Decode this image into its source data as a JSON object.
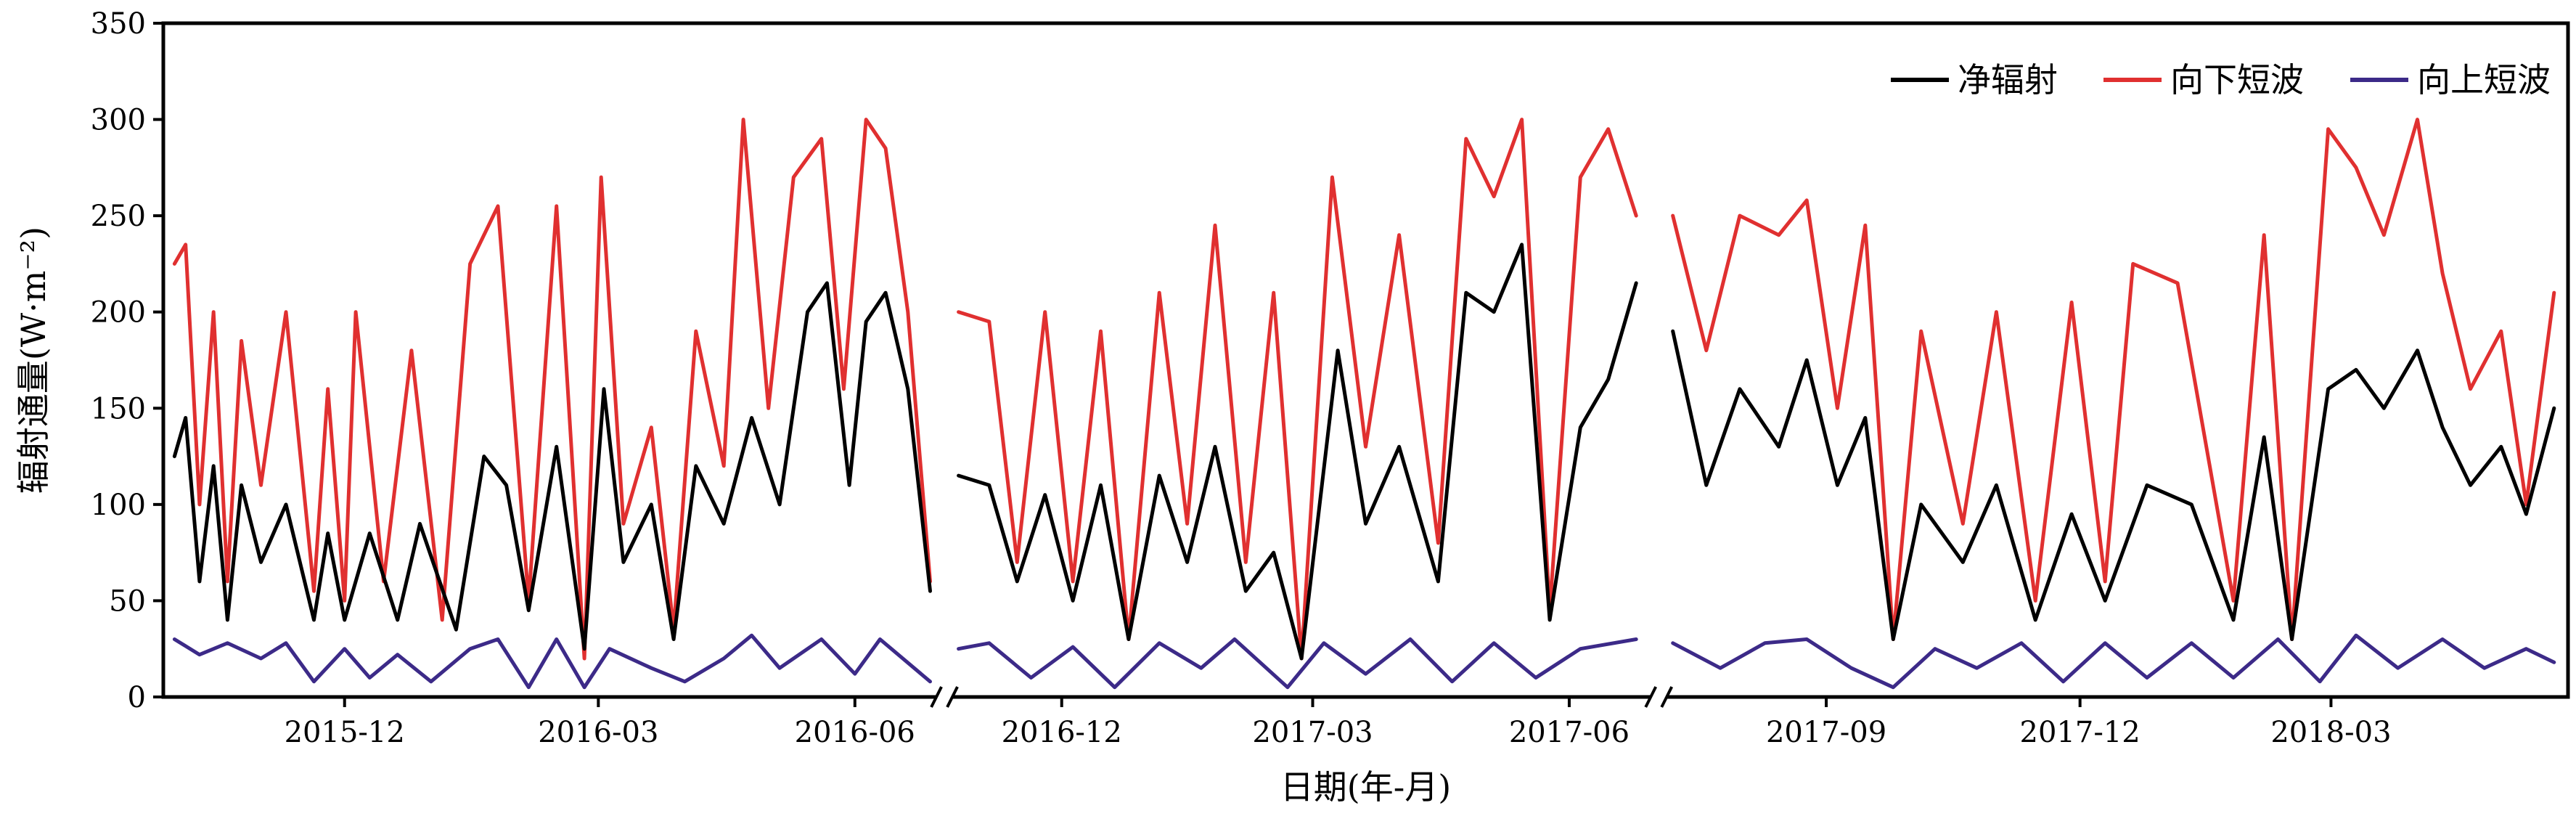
{
  "chart_data": {
    "type": "line",
    "title": "",
    "xlabel": "日期(年-月)",
    "ylabel": "辐射通量(W·m⁻²)",
    "ylim": [
      0,
      350
    ],
    "yticks": [
      0,
      50,
      100,
      150,
      200,
      250,
      300,
      350
    ],
    "grid": false,
    "legend_position": "top-right",
    "axis_breaks": 2,
    "segments": [
      {
        "start": "2015-09-27",
        "end": "2016-07-01",
        "ticks": [
          "2015-12",
          "2016-03",
          "2016-06"
        ]
      },
      {
        "start": "2016-10-22",
        "end": "2017-07-01",
        "ticks": [
          "2016-12",
          "2017-03",
          "2017-06"
        ]
      },
      {
        "start": "2017-07-05",
        "end": "2018-05-25",
        "ticks": [
          "2017-09",
          "2017-12",
          "2018-03"
        ]
      }
    ],
    "series": [
      {
        "name": "净辐射",
        "color": "#000000",
        "points": [
          [
            "2015-10-01",
            125
          ],
          [
            "2015-10-05",
            145
          ],
          [
            "2015-10-10",
            60
          ],
          [
            "2015-10-15",
            120
          ],
          [
            "2015-10-20",
            40
          ],
          [
            "2015-10-25",
            110
          ],
          [
            "2015-11-01",
            70
          ],
          [
            "2015-11-10",
            100
          ],
          [
            "2015-11-20",
            40
          ],
          [
            "2015-11-25",
            85
          ],
          [
            "2015-12-01",
            40
          ],
          [
            "2015-12-10",
            85
          ],
          [
            "2015-12-20",
            40
          ],
          [
            "2015-12-28",
            90
          ],
          [
            "2016-01-10",
            35
          ],
          [
            "2016-01-20",
            125
          ],
          [
            "2016-01-28",
            110
          ],
          [
            "2016-02-05",
            45
          ],
          [
            "2016-02-15",
            130
          ],
          [
            "2016-02-25",
            25
          ],
          [
            "2016-03-03",
            160
          ],
          [
            "2016-03-10",
            70
          ],
          [
            "2016-03-20",
            100
          ],
          [
            "2016-03-28",
            30
          ],
          [
            "2016-04-05",
            120
          ],
          [
            "2016-04-15",
            90
          ],
          [
            "2016-04-25",
            145
          ],
          [
            "2016-05-05",
            100
          ],
          [
            "2016-05-15",
            200
          ],
          [
            "2016-05-22",
            215
          ],
          [
            "2016-05-30",
            110
          ],
          [
            "2016-06-05",
            195
          ],
          [
            "2016-06-12",
            210
          ],
          [
            "2016-06-20",
            160
          ],
          [
            "2016-06-28",
            55
          ],
          [
            "2016-10-25",
            115
          ],
          [
            "2016-11-05",
            110
          ],
          [
            "2016-11-15",
            60
          ],
          [
            "2016-11-25",
            105
          ],
          [
            "2016-12-05",
            50
          ],
          [
            "2016-12-15",
            110
          ],
          [
            "2016-12-25",
            30
          ],
          [
            "2017-01-05",
            115
          ],
          [
            "2017-01-15",
            70
          ],
          [
            "2017-01-25",
            130
          ],
          [
            "2017-02-05",
            55
          ],
          [
            "2017-02-15",
            75
          ],
          [
            "2017-02-25",
            20
          ],
          [
            "2017-03-10",
            180
          ],
          [
            "2017-03-20",
            90
          ],
          [
            "2017-04-01",
            130
          ],
          [
            "2017-04-15",
            60
          ],
          [
            "2017-04-25",
            210
          ],
          [
            "2017-05-05",
            200
          ],
          [
            "2017-05-15",
            235
          ],
          [
            "2017-05-25",
            40
          ],
          [
            "2017-06-05",
            140
          ],
          [
            "2017-06-15",
            165
          ],
          [
            "2017-06-25",
            215
          ],
          [
            "2017-07-08",
            190
          ],
          [
            "2017-07-20",
            110
          ],
          [
            "2017-08-01",
            160
          ],
          [
            "2017-08-15",
            130
          ],
          [
            "2017-08-25",
            175
          ],
          [
            "2017-09-05",
            110
          ],
          [
            "2017-09-15",
            145
          ],
          [
            "2017-09-25",
            30
          ],
          [
            "2017-10-05",
            100
          ],
          [
            "2017-10-20",
            70
          ],
          [
            "2017-11-01",
            110
          ],
          [
            "2017-11-15",
            40
          ],
          [
            "2017-11-28",
            95
          ],
          [
            "2017-12-10",
            50
          ],
          [
            "2017-12-25",
            110
          ],
          [
            "2018-01-10",
            100
          ],
          [
            "2018-01-25",
            40
          ],
          [
            "2018-02-05",
            135
          ],
          [
            "2018-02-15",
            30
          ],
          [
            "2018-02-28",
            160
          ],
          [
            "2018-03-10",
            170
          ],
          [
            "2018-03-20",
            150
          ],
          [
            "2018-04-01",
            180
          ],
          [
            "2018-04-10",
            140
          ],
          [
            "2018-04-20",
            110
          ],
          [
            "2018-05-01",
            130
          ],
          [
            "2018-05-10",
            95
          ],
          [
            "2018-05-20",
            150
          ]
        ]
      },
      {
        "name": "向下短波",
        "color": "#e03030",
        "points": [
          [
            "2015-10-01",
            225
          ],
          [
            "2015-10-05",
            235
          ],
          [
            "2015-10-10",
            100
          ],
          [
            "2015-10-15",
            200
          ],
          [
            "2015-10-20",
            60
          ],
          [
            "2015-10-25",
            185
          ],
          [
            "2015-11-01",
            110
          ],
          [
            "2015-11-10",
            200
          ],
          [
            "2015-11-20",
            55
          ],
          [
            "2015-11-25",
            160
          ],
          [
            "2015-12-01",
            50
          ],
          [
            "2015-12-05",
            200
          ],
          [
            "2015-12-15",
            60
          ],
          [
            "2015-12-25",
            180
          ],
          [
            "2016-01-05",
            40
          ],
          [
            "2016-01-15",
            225
          ],
          [
            "2016-01-25",
            255
          ],
          [
            "2016-02-05",
            50
          ],
          [
            "2016-02-15",
            255
          ],
          [
            "2016-02-25",
            20
          ],
          [
            "2016-03-02",
            270
          ],
          [
            "2016-03-10",
            90
          ],
          [
            "2016-03-20",
            140
          ],
          [
            "2016-03-28",
            35
          ],
          [
            "2016-04-05",
            190
          ],
          [
            "2016-04-15",
            120
          ],
          [
            "2016-04-22",
            300
          ],
          [
            "2016-05-01",
            150
          ],
          [
            "2016-05-10",
            270
          ],
          [
            "2016-05-20",
            290
          ],
          [
            "2016-05-28",
            160
          ],
          [
            "2016-06-05",
            300
          ],
          [
            "2016-06-12",
            285
          ],
          [
            "2016-06-20",
            200
          ],
          [
            "2016-06-28",
            60
          ],
          [
            "2016-10-25",
            200
          ],
          [
            "2016-11-05",
            195
          ],
          [
            "2016-11-15",
            70
          ],
          [
            "2016-11-25",
            200
          ],
          [
            "2016-12-05",
            60
          ],
          [
            "2016-12-15",
            190
          ],
          [
            "2016-12-25",
            30
          ],
          [
            "2017-01-05",
            210
          ],
          [
            "2017-01-15",
            90
          ],
          [
            "2017-01-25",
            245
          ],
          [
            "2017-02-05",
            70
          ],
          [
            "2017-02-15",
            210
          ],
          [
            "2017-02-25",
            20
          ],
          [
            "2017-03-08",
            270
          ],
          [
            "2017-03-20",
            130
          ],
          [
            "2017-04-01",
            240
          ],
          [
            "2017-04-15",
            80
          ],
          [
            "2017-04-25",
            290
          ],
          [
            "2017-05-05",
            260
          ],
          [
            "2017-05-15",
            300
          ],
          [
            "2017-05-25",
            45
          ],
          [
            "2017-06-05",
            270
          ],
          [
            "2017-06-15",
            295
          ],
          [
            "2017-06-25",
            250
          ],
          [
            "2017-07-08",
            250
          ],
          [
            "2017-07-20",
            180
          ],
          [
            "2017-08-01",
            250
          ],
          [
            "2017-08-15",
            240
          ],
          [
            "2017-08-25",
            258
          ],
          [
            "2017-09-05",
            150
          ],
          [
            "2017-09-15",
            245
          ],
          [
            "2017-09-25",
            30
          ],
          [
            "2017-10-05",
            190
          ],
          [
            "2017-10-20",
            90
          ],
          [
            "2017-11-01",
            200
          ],
          [
            "2017-11-15",
            50
          ],
          [
            "2017-11-28",
            205
          ],
          [
            "2017-12-10",
            60
          ],
          [
            "2017-12-20",
            225
          ],
          [
            "2018-01-05",
            215
          ],
          [
            "2018-01-25",
            50
          ],
          [
            "2018-02-05",
            240
          ],
          [
            "2018-02-15",
            30
          ],
          [
            "2018-02-28",
            295
          ],
          [
            "2018-03-10",
            275
          ],
          [
            "2018-03-20",
            240
          ],
          [
            "2018-04-01",
            300
          ],
          [
            "2018-04-10",
            220
          ],
          [
            "2018-04-20",
            160
          ],
          [
            "2018-05-01",
            190
          ],
          [
            "2018-05-10",
            100
          ],
          [
            "2018-05-20",
            210
          ]
        ]
      },
      {
        "name": "向上短波",
        "color": "#3c2a88",
        "points": [
          [
            "2015-10-01",
            30
          ],
          [
            "2015-10-10",
            22
          ],
          [
            "2015-10-20",
            28
          ],
          [
            "2015-11-01",
            20
          ],
          [
            "2015-11-10",
            28
          ],
          [
            "2015-11-20",
            8
          ],
          [
            "2015-12-01",
            25
          ],
          [
            "2015-12-10",
            10
          ],
          [
            "2015-12-20",
            22
          ],
          [
            "2016-01-01",
            8
          ],
          [
            "2016-01-15",
            25
          ],
          [
            "2016-01-25",
            30
          ],
          [
            "2016-02-05",
            5
          ],
          [
            "2016-02-15",
            30
          ],
          [
            "2016-02-25",
            5
          ],
          [
            "2016-03-05",
            25
          ],
          [
            "2016-03-20",
            15
          ],
          [
            "2016-04-01",
            8
          ],
          [
            "2016-04-15",
            20
          ],
          [
            "2016-04-25",
            32
          ],
          [
            "2016-05-05",
            15
          ],
          [
            "2016-05-20",
            30
          ],
          [
            "2016-06-01",
            12
          ],
          [
            "2016-06-10",
            30
          ],
          [
            "2016-06-28",
            8
          ],
          [
            "2016-10-25",
            25
          ],
          [
            "2016-11-05",
            28
          ],
          [
            "2016-11-20",
            10
          ],
          [
            "2016-12-05",
            26
          ],
          [
            "2016-12-20",
            5
          ],
          [
            "2017-01-05",
            28
          ],
          [
            "2017-01-20",
            15
          ],
          [
            "2017-02-01",
            30
          ],
          [
            "2017-02-20",
            5
          ],
          [
            "2017-03-05",
            28
          ],
          [
            "2017-03-20",
            12
          ],
          [
            "2017-04-05",
            30
          ],
          [
            "2017-04-20",
            8
          ],
          [
            "2017-05-05",
            28
          ],
          [
            "2017-05-20",
            10
          ],
          [
            "2017-06-05",
            25
          ],
          [
            "2017-06-25",
            30
          ],
          [
            "2017-07-08",
            28
          ],
          [
            "2017-07-25",
            15
          ],
          [
            "2017-08-10",
            28
          ],
          [
            "2017-08-25",
            30
          ],
          [
            "2017-09-10",
            15
          ],
          [
            "2017-09-25",
            5
          ],
          [
            "2017-10-10",
            25
          ],
          [
            "2017-10-25",
            15
          ],
          [
            "2017-11-10",
            28
          ],
          [
            "2017-11-25",
            8
          ],
          [
            "2017-12-10",
            28
          ],
          [
            "2017-12-25",
            10
          ],
          [
            "2018-01-10",
            28
          ],
          [
            "2018-01-25",
            10
          ],
          [
            "2018-02-10",
            30
          ],
          [
            "2018-02-25",
            8
          ],
          [
            "2018-03-10",
            32
          ],
          [
            "2018-03-25",
            15
          ],
          [
            "2018-04-10",
            30
          ],
          [
            "2018-04-25",
            15
          ],
          [
            "2018-05-10",
            25
          ],
          [
            "2018-05-20",
            18
          ]
        ]
      }
    ]
  }
}
